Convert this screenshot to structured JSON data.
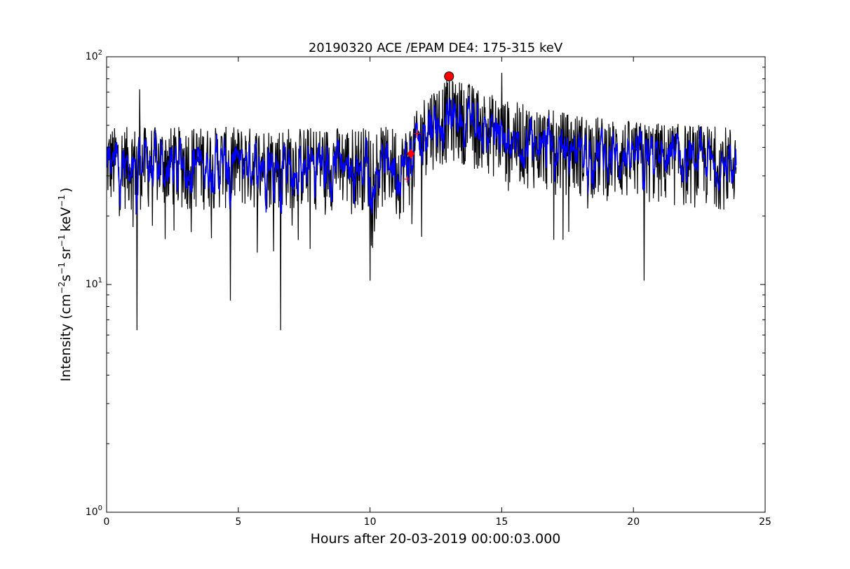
{
  "chart_data": {
    "type": "line",
    "title": "20190320 ACE /EPAM DE4: 175-315 keV",
    "xlabel": "Hours after 20-03-2019 00:00:03.000",
    "ylabel": {
      "main": "Intensity (cm",
      "exp1": "−2",
      "mid1": "s",
      "exp2": "−1",
      "mid2": "sr",
      "exp3": "−1",
      "mid3": "keV",
      "exp4": "−1",
      "end": ")"
    },
    "xlim": [
      0,
      25
    ],
    "ylim": [
      1,
      100
    ],
    "yscale": "log",
    "grid": false,
    "x_ticks": [
      {
        "value": 0,
        "label": "0"
      },
      {
        "value": 5,
        "label": "5"
      },
      {
        "value": 10,
        "label": "10"
      },
      {
        "value": 15,
        "label": "15"
      },
      {
        "value": 20,
        "label": "20"
      },
      {
        "value": 25,
        "label": "25"
      }
    ],
    "y_ticks": [
      {
        "value": 1,
        "base": "10",
        "exp": "0"
      },
      {
        "value": 10,
        "base": "10",
        "exp": "1"
      },
      {
        "value": 100,
        "base": "10",
        "exp": "2"
      }
    ],
    "series": [
      {
        "color": "#000000",
        "style": "raw",
        "x_range": [
          0,
          23.9
        ],
        "baseline_before": [
          [
            0,
            29
          ],
          [
            11.0,
            30
          ]
        ],
        "rise": [
          [
            11.0,
            30
          ],
          [
            11.6,
            36
          ],
          [
            12.2,
            50
          ],
          [
            13.0,
            55
          ],
          [
            13.6,
            54
          ],
          [
            15.0,
            45
          ],
          [
            17.0,
            40
          ],
          [
            20.0,
            36
          ],
          [
            23.9,
            34
          ]
        ],
        "spread_factor": [
          0.62,
          1.45
        ],
        "notable_points": [
          [
            1.15,
            6.3
          ],
          [
            4.7,
            8.5
          ],
          [
            6.6,
            6.3
          ],
          [
            10.0,
            10.4
          ],
          [
            1.25,
            72
          ],
          [
            15.0,
            85
          ],
          [
            20.4,
            10.4
          ]
        ]
      },
      {
        "color": "#0000ff",
        "style": "smoothed",
        "x_range": [
          0,
          23.9
        ],
        "rise": [
          [
            0,
            29
          ],
          [
            11.0,
            30
          ],
          [
            11.6,
            36
          ],
          [
            12.2,
            50
          ],
          [
            13.0,
            55
          ],
          [
            13.6,
            54
          ],
          [
            15.0,
            45
          ],
          [
            17.0,
            40
          ],
          [
            20.0,
            36
          ],
          [
            23.9,
            34
          ]
        ]
      }
    ],
    "markers": [
      {
        "shape": "diamond",
        "color": "#ff0000",
        "x": 11.55,
        "y": 37.5
      },
      {
        "shape": "circle",
        "color": "#ff0000",
        "x": 13.0,
        "y": 82
      },
      {
        "shape": "plus",
        "color": "#ff0000",
        "x": 11.4,
        "y": 29
      },
      {
        "shape": "plus",
        "color": "#ff0000",
        "x": 11.8,
        "y": 46
      }
    ]
  }
}
